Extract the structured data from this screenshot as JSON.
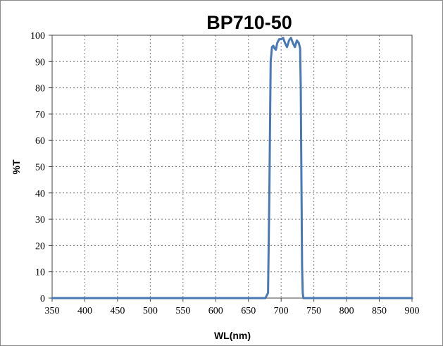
{
  "chart_data": {
    "type": "line",
    "title": "BP710-50",
    "xlabel": "WL(nm)",
    "ylabel": "%T",
    "xlim": [
      350,
      900
    ],
    "ylim": [
      0,
      100
    ],
    "x_ticks": [
      350,
      400,
      450,
      500,
      550,
      600,
      650,
      700,
      750,
      800,
      850,
      900
    ],
    "y_ticks": [
      0,
      10,
      20,
      30,
      40,
      50,
      60,
      70,
      80,
      90,
      100
    ],
    "grid": true,
    "grid_style": "dotted",
    "legend": "none",
    "series": [
      {
        "color": "#4a78b4",
        "x": [
          350,
          400,
          450,
          500,
          550,
          600,
          650,
          676,
          680,
          682,
          684,
          686,
          688,
          690,
          692,
          694,
          697,
          700,
          703,
          706,
          709,
          712,
          715,
          718,
          721,
          724,
          727,
          729,
          730,
          731,
          732,
          733,
          734,
          738,
          750,
          800,
          850,
          900
        ],
        "y": [
          0,
          0,
          0,
          0,
          0,
          0,
          0,
          0,
          2,
          40,
          90,
          95.5,
          96,
          95,
          94.5,
          97,
          98.5,
          98.5,
          99,
          97,
          95.5,
          98,
          99,
          97,
          95.5,
          98,
          97,
          95,
          80,
          45,
          12,
          2,
          0,
          0,
          0,
          0,
          0,
          0
        ]
      }
    ]
  }
}
